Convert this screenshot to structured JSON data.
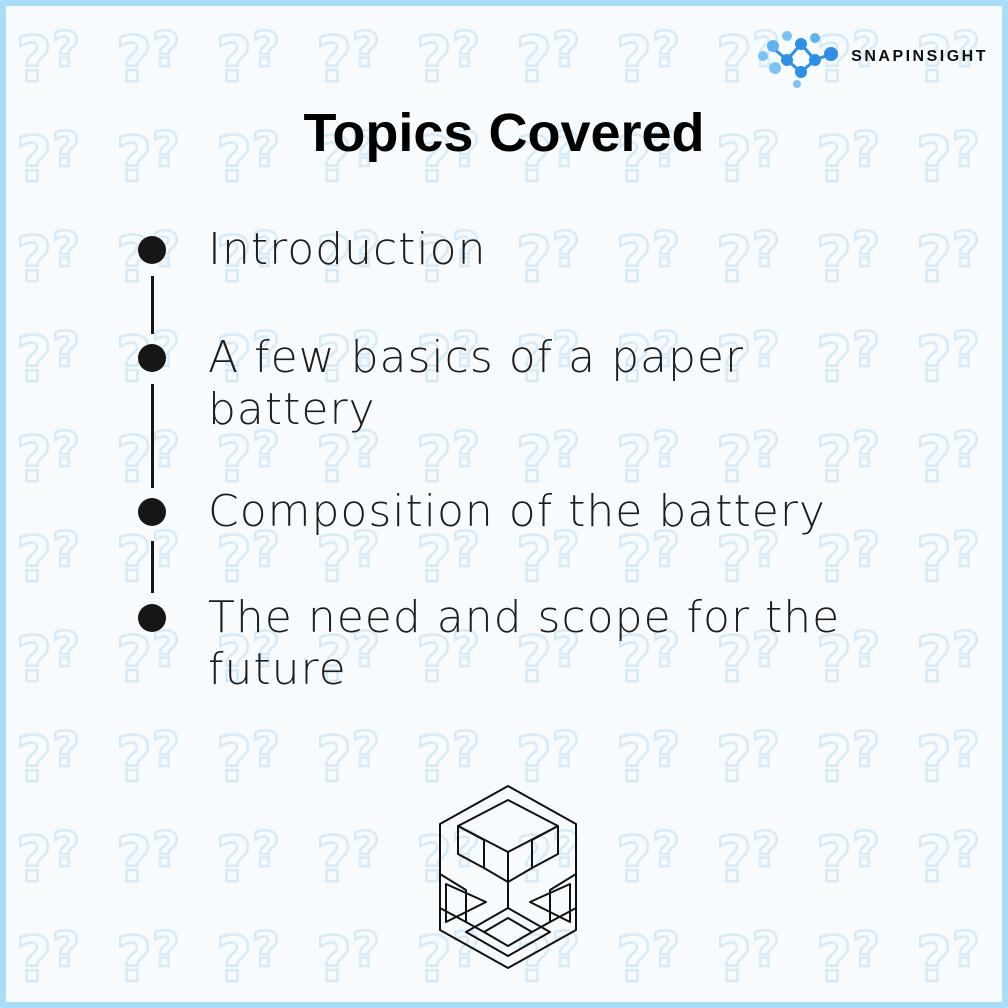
{
  "brand": {
    "name": "SNAPINSIGHT",
    "accent_color": "#2f8fe6",
    "icon": "molecule-dots-icon"
  },
  "title": "Topics Covered",
  "topics": [
    {
      "line1": "Introduction",
      "line2": ""
    },
    {
      "line1": "A few basics of a paper",
      "line2": "battery"
    },
    {
      "line1": "Composition of the battery",
      "line2": ""
    },
    {
      "line1": "The need and scope for the",
      "line2": "future"
    }
  ],
  "colors": {
    "border": "#a9dcf6",
    "pattern": "#dcedf8",
    "text": "#1c1c1c"
  },
  "bottom_icon": "recycle-geometric-icon"
}
